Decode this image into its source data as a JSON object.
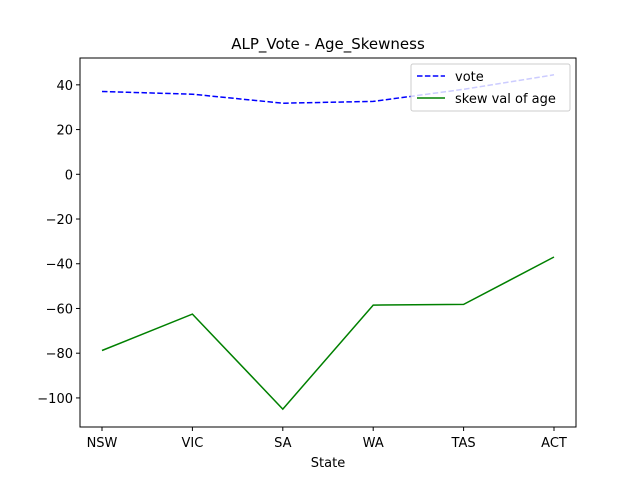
{
  "chart_data": {
    "type": "line",
    "title": "ALP_Vote - Age_Skewness",
    "xlabel": "State",
    "ylabel": "",
    "categories": [
      "NSW",
      "VIC",
      "SA",
      "WA",
      "TAS",
      "ACT"
    ],
    "series": [
      {
        "name": "vote",
        "values": [
          37,
          35.8,
          31.8,
          32.6,
          38,
          44.5
        ],
        "color": "#0000ff",
        "style": "dashed"
      },
      {
        "name": "skew val of age",
        "values": [
          -78.8,
          -62.5,
          -105,
          -58.5,
          -58.2,
          -37
        ],
        "color": "#008000",
        "style": "solid"
      }
    ],
    "ylim": [
      -113,
      52
    ],
    "yticks": [
      40,
      20,
      0,
      -20,
      -40,
      -60,
      -80,
      -100
    ],
    "ytick_labels": [
      "40",
      "20",
      "0",
      "−20",
      "−40",
      "−60",
      "−80",
      "−100"
    ],
    "grid": false,
    "legend_position": "top-right"
  }
}
